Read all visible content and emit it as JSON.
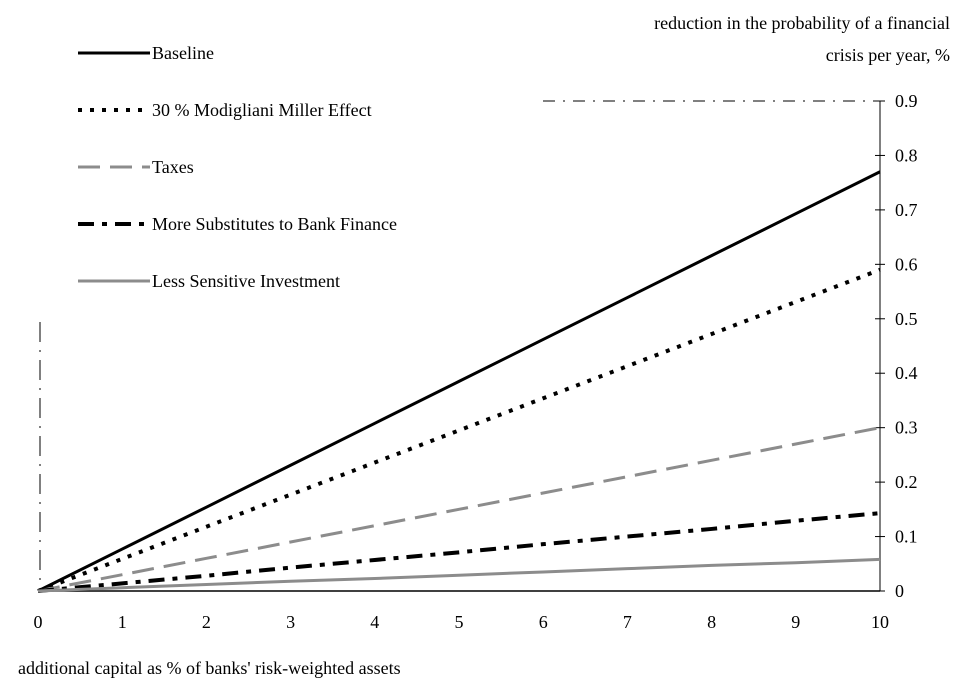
{
  "chart_data": {
    "type": "line",
    "ylabel_line1": "reduction in the probability of a financial",
    "ylabel_line2": "crisis per year, %",
    "xlabel": "additional capital as % of banks' risk-weighted assets",
    "x": [
      0,
      1,
      2,
      3,
      4,
      5,
      6,
      7,
      8,
      9,
      10
    ],
    "xlim": [
      0,
      10
    ],
    "ylim": [
      0,
      0.9
    ],
    "yticks": [
      "0",
      "0.1",
      "0.2",
      "0.3",
      "0.4",
      "0.5",
      "0.6",
      "0.7",
      "0.8",
      "0.9"
    ],
    "xticks": [
      "0",
      "1",
      "2",
      "3",
      "4",
      "5",
      "6",
      "7",
      "8",
      "9",
      "10"
    ],
    "y_axis_position": "right",
    "legend_position": "top-left",
    "series": [
      {
        "name": "Baseline",
        "color": "#000000",
        "style": "solid",
        "values": [
          0,
          0.077,
          0.154,
          0.231,
          0.308,
          0.385,
          0.462,
          0.539,
          0.616,
          0.693,
          0.77
        ]
      },
      {
        "name": "30 % Modigliani Miller Effect",
        "color": "#000000",
        "style": "dotted",
        "values": [
          0,
          0.059,
          0.118,
          0.177,
          0.236,
          0.295,
          0.354,
          0.413,
          0.472,
          0.531,
          0.59
        ]
      },
      {
        "name": "Taxes",
        "color": "#8c8c8c",
        "style": "long-dash",
        "values": [
          0,
          0.03,
          0.06,
          0.09,
          0.12,
          0.15,
          0.18,
          0.21,
          0.24,
          0.27,
          0.3
        ]
      },
      {
        "name": "More Substitutes to Bank Finance",
        "color": "#000000",
        "style": "dash-dot",
        "values": [
          0,
          0.014,
          0.028,
          0.043,
          0.057,
          0.071,
          0.086,
          0.1,
          0.114,
          0.129,
          0.143
        ]
      },
      {
        "name": "Less Sensitive Investment",
        "color": "#8c8c8c",
        "style": "solid",
        "values": [
          0,
          0.006,
          0.012,
          0.018,
          0.023,
          0.029,
          0.035,
          0.041,
          0.047,
          0.052,
          0.058
        ]
      }
    ]
  }
}
